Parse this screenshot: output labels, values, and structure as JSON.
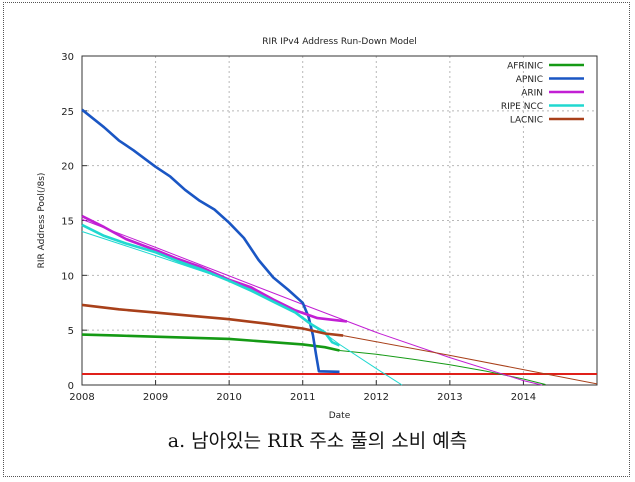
{
  "caption": "a. 남아있는 RIR 주소 풀의 소비 예측",
  "chart_data": {
    "type": "line",
    "title": "RIR IPv4 Address Run-Down Model",
    "xlabel": "Date",
    "ylabel": "RIR Address Pool(/8s)",
    "xlim": [
      2008,
      2015
    ],
    "ylim": [
      0,
      30
    ],
    "x_ticks": [
      2008,
      2009,
      2010,
      2011,
      2012,
      2013,
      2014
    ],
    "y_ticks": [
      0,
      5,
      10,
      15,
      20,
      25,
      30
    ],
    "grid": true,
    "legend_position": "top-right",
    "reference_line": {
      "y": 1,
      "color": "#e0201a"
    },
    "series": [
      {
        "name": "AFRINIC",
        "color": "#159a15",
        "actual": [
          [
            2008.0,
            4.6
          ],
          [
            2008.5,
            4.5
          ],
          [
            2009.0,
            4.4
          ],
          [
            2009.5,
            4.3
          ],
          [
            2010.0,
            4.2
          ],
          [
            2010.5,
            3.95
          ],
          [
            2011.0,
            3.7
          ],
          [
            2011.3,
            3.45
          ],
          [
            2011.5,
            3.15
          ]
        ],
        "projection": [
          [
            2011.5,
            3.15
          ],
          [
            2012.0,
            2.8
          ],
          [
            2012.5,
            2.35
          ],
          [
            2013.0,
            1.85
          ],
          [
            2013.5,
            1.25
          ],
          [
            2014.0,
            0.55
          ],
          [
            2014.3,
            0.05
          ]
        ]
      },
      {
        "name": "APNIC",
        "color": "#1a56c4",
        "actual": [
          [
            2008.0,
            25.1
          ],
          [
            2008.3,
            23.5
          ],
          [
            2008.5,
            22.3
          ],
          [
            2008.7,
            21.4
          ],
          [
            2009.0,
            19.9
          ],
          [
            2009.2,
            19.0
          ],
          [
            2009.4,
            17.8
          ],
          [
            2009.6,
            16.8
          ],
          [
            2009.8,
            16.0
          ],
          [
            2010.0,
            14.8
          ],
          [
            2010.2,
            13.4
          ],
          [
            2010.4,
            11.4
          ],
          [
            2010.6,
            9.8
          ],
          [
            2010.8,
            8.7
          ],
          [
            2011.0,
            7.5
          ],
          [
            2011.08,
            6.2
          ],
          [
            2011.14,
            4.5
          ],
          [
            2011.18,
            2.8
          ],
          [
            2011.22,
            1.25
          ],
          [
            2011.5,
            1.2
          ]
        ],
        "projection": []
      },
      {
        "name": "ARIN",
        "color": "#c21fd4",
        "actual": [
          [
            2008.0,
            15.4
          ],
          [
            2008.3,
            14.4
          ],
          [
            2008.6,
            13.3
          ],
          [
            2009.0,
            12.3
          ],
          [
            2009.3,
            11.5
          ],
          [
            2009.6,
            10.8
          ],
          [
            2010.0,
            9.6
          ],
          [
            2010.3,
            8.9
          ],
          [
            2010.6,
            7.8
          ],
          [
            2010.9,
            6.8
          ],
          [
            2011.2,
            6.1
          ],
          [
            2011.6,
            5.8
          ]
        ],
        "projection": [
          [
            2008.0,
            15.1
          ],
          [
            2009.0,
            12.55
          ],
          [
            2010.0,
            9.95
          ],
          [
            2011.0,
            7.35
          ],
          [
            2012.0,
            4.8
          ],
          [
            2013.0,
            2.5
          ],
          [
            2014.0,
            0.4
          ],
          [
            2014.25,
            0.0
          ]
        ]
      },
      {
        "name": "RIPE NCC",
        "color": "#20d8d0",
        "actual": [
          [
            2008.0,
            14.6
          ],
          [
            2008.3,
            13.6
          ],
          [
            2008.6,
            12.9
          ],
          [
            2009.0,
            12.1
          ],
          [
            2009.3,
            11.3
          ],
          [
            2009.6,
            10.6
          ],
          [
            2010.0,
            9.5
          ],
          [
            2010.3,
            8.6
          ],
          [
            2010.6,
            7.6
          ],
          [
            2010.9,
            6.6
          ],
          [
            2011.1,
            5.6
          ],
          [
            2011.3,
            4.8
          ],
          [
            2011.4,
            3.9
          ],
          [
            2011.5,
            3.6
          ]
        ],
        "projection": [
          [
            2008.0,
            14.0
          ],
          [
            2009.0,
            11.8
          ],
          [
            2010.0,
            9.55
          ],
          [
            2010.5,
            8.2
          ],
          [
            2011.0,
            6.2
          ],
          [
            2011.5,
            3.7
          ],
          [
            2012.0,
            1.5
          ],
          [
            2012.35,
            0.0
          ]
        ]
      },
      {
        "name": "LACNIC",
        "color": "#a8401a",
        "actual": [
          [
            2008.0,
            7.3
          ],
          [
            2008.5,
            6.9
          ],
          [
            2009.0,
            6.6
          ],
          [
            2009.5,
            6.3
          ],
          [
            2010.0,
            6.0
          ],
          [
            2010.5,
            5.6
          ],
          [
            2011.0,
            5.15
          ],
          [
            2011.3,
            4.7
          ],
          [
            2011.55,
            4.5
          ]
        ],
        "projection": [
          [
            2011.55,
            4.5
          ],
          [
            2012.0,
            3.95
          ],
          [
            2013.0,
            2.7
          ],
          [
            2014.0,
            1.4
          ],
          [
            2015.0,
            0.1
          ]
        ]
      }
    ]
  }
}
